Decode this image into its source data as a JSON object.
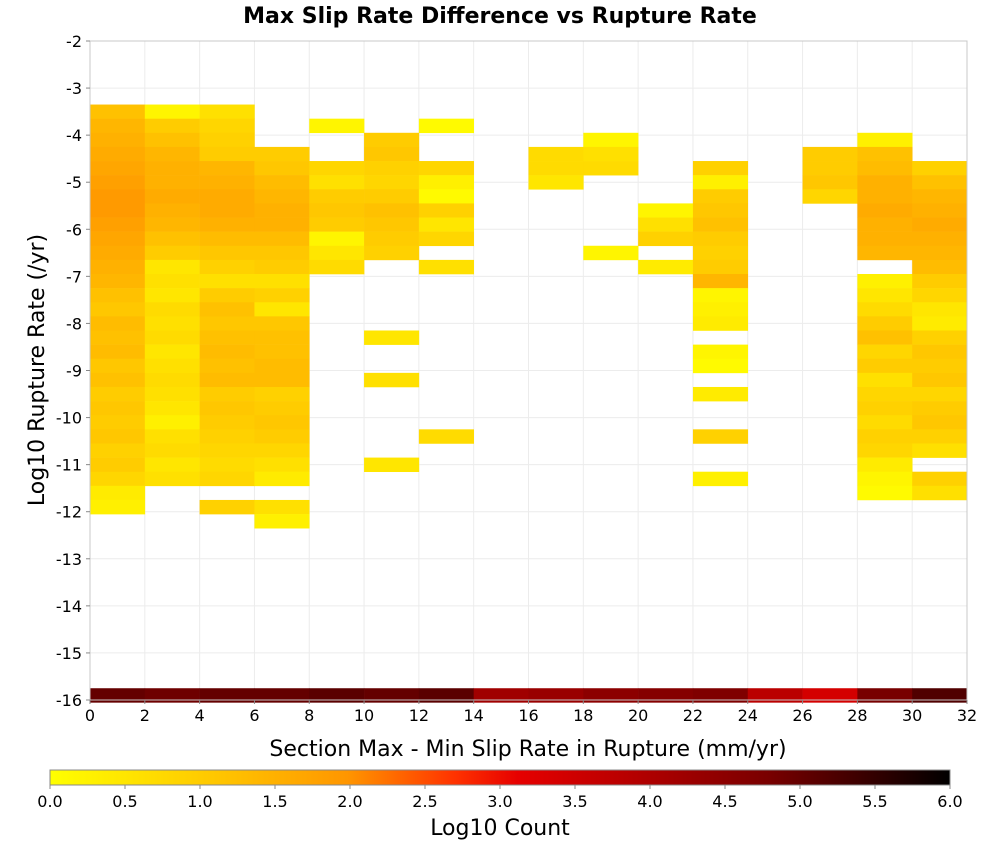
{
  "chart_data": {
    "type": "heatmap",
    "title": "Max Slip Rate Difference vs Rupture Rate",
    "xlabel": "Section Max - Min Slip Rate in Rupture (mm/yr)",
    "ylabel": "Log10 Rupture Rate (/yr)",
    "xlim": [
      0,
      32
    ],
    "ylim": [
      -16,
      -2
    ],
    "x_ticks": [
      "0",
      "2",
      "4",
      "6",
      "8",
      "10",
      "12",
      "14",
      "16",
      "18",
      "20",
      "22",
      "24",
      "26",
      "28",
      "30",
      "32"
    ],
    "y_ticks": [
      "-2",
      "-3",
      "-4",
      "-5",
      "-6",
      "-7",
      "-8",
      "-9",
      "-10",
      "-11",
      "-12",
      "-13",
      "-14",
      "-15",
      "-16"
    ],
    "bin_width_x": 2,
    "bin_height_y": 0.3,
    "colorbar": {
      "label": "Log10 Count",
      "range": [
        0,
        6
      ],
      "ticks": [
        "0.0",
        "0.5",
        "1.0",
        "1.5",
        "2.0",
        "2.5",
        "3.0",
        "3.5",
        "4.0",
        "4.5",
        "5.0",
        "5.5",
        "6.0"
      ]
    },
    "columns": [
      {
        "x": 0,
        "cells": [
          [
            -3.5,
            1.2
          ],
          [
            -3.8,
            1.4
          ],
          [
            -4.1,
            1.5
          ],
          [
            -4.4,
            1.6
          ],
          [
            -4.7,
            1.7
          ],
          [
            -5.0,
            1.8
          ],
          [
            -5.3,
            1.9
          ],
          [
            -5.6,
            1.9
          ],
          [
            -5.9,
            1.8
          ],
          [
            -6.2,
            1.7
          ],
          [
            -6.5,
            1.6
          ],
          [
            -6.8,
            1.5
          ],
          [
            -7.1,
            1.4
          ],
          [
            -7.4,
            1.2
          ],
          [
            -7.7,
            1.1
          ],
          [
            -8.0,
            1.3
          ],
          [
            -8.3,
            1.2
          ],
          [
            -8.6,
            1.3
          ],
          [
            -8.9,
            1.1
          ],
          [
            -9.2,
            1.2
          ],
          [
            -9.5,
            1.0
          ],
          [
            -9.8,
            1.1
          ],
          [
            -10.1,
            1.0
          ],
          [
            -10.4,
            1.1
          ],
          [
            -10.7,
            0.9
          ],
          [
            -11.0,
            1.0
          ],
          [
            -11.3,
            0.8
          ],
          [
            -11.6,
            0.4
          ],
          [
            -11.9,
            0.3
          ],
          [
            -15.9,
            5.0
          ]
        ]
      },
      {
        "x": 2,
        "cells": [
          [
            -3.5,
            0.2
          ],
          [
            -3.8,
            1.0
          ],
          [
            -4.1,
            1.2
          ],
          [
            -4.4,
            1.4
          ],
          [
            -4.7,
            1.5
          ],
          [
            -5.0,
            1.5
          ],
          [
            -5.3,
            1.6
          ],
          [
            -5.6,
            1.5
          ],
          [
            -5.9,
            1.4
          ],
          [
            -6.2,
            1.2
          ],
          [
            -6.5,
            1.0
          ],
          [
            -6.8,
            0.5
          ],
          [
            -7.1,
            0.6
          ],
          [
            -7.4,
            0.5
          ],
          [
            -7.7,
            0.7
          ],
          [
            -8.0,
            0.6
          ],
          [
            -8.3,
            0.7
          ],
          [
            -8.6,
            0.5
          ],
          [
            -8.9,
            0.6
          ],
          [
            -9.2,
            0.7
          ],
          [
            -9.5,
            0.6
          ],
          [
            -9.8,
            0.5
          ],
          [
            -10.1,
            0.3
          ],
          [
            -10.4,
            0.6
          ],
          [
            -10.7,
            0.7
          ],
          [
            -11.0,
            0.5
          ],
          [
            -11.3,
            0.6
          ],
          [
            -15.9,
            4.9
          ]
        ]
      },
      {
        "x": 4,
        "cells": [
          [
            -3.5,
            0.6
          ],
          [
            -3.8,
            0.8
          ],
          [
            -4.1,
            0.9
          ],
          [
            -4.4,
            1.0
          ],
          [
            -4.7,
            1.4
          ],
          [
            -5.0,
            1.5
          ],
          [
            -5.3,
            1.6
          ],
          [
            -5.6,
            1.6
          ],
          [
            -5.9,
            1.5
          ],
          [
            -6.2,
            1.3
          ],
          [
            -6.5,
            1.1
          ],
          [
            -6.8,
            0.9
          ],
          [
            -7.1,
            0.6
          ],
          [
            -7.4,
            1.0
          ],
          [
            -7.7,
            1.2
          ],
          [
            -8.0,
            1.1
          ],
          [
            -8.3,
            1.2
          ],
          [
            -8.6,
            1.3
          ],
          [
            -8.9,
            1.2
          ],
          [
            -9.2,
            1.3
          ],
          [
            -9.5,
            1.0
          ],
          [
            -9.8,
            1.1
          ],
          [
            -10.1,
            1.0
          ],
          [
            -10.4,
            0.9
          ],
          [
            -10.7,
            0.8
          ],
          [
            -11.0,
            0.7
          ],
          [
            -11.3,
            0.8
          ],
          [
            -11.9,
            0.9
          ],
          [
            -15.9,
            5.0
          ]
        ]
      },
      {
        "x": 6,
        "cells": [
          [
            -4.4,
            1.0
          ],
          [
            -4.7,
            1.1
          ],
          [
            -5.0,
            1.3
          ],
          [
            -5.3,
            1.4
          ],
          [
            -5.6,
            1.5
          ],
          [
            -5.9,
            1.5
          ],
          [
            -6.2,
            1.3
          ],
          [
            -6.5,
            1.1
          ],
          [
            -6.8,
            1.0
          ],
          [
            -7.1,
            0.6
          ],
          [
            -7.4,
            0.9
          ],
          [
            -7.7,
            0.5
          ],
          [
            -8.0,
            1.1
          ],
          [
            -8.3,
            1.2
          ],
          [
            -8.6,
            1.2
          ],
          [
            -8.9,
            1.3
          ],
          [
            -9.2,
            1.3
          ],
          [
            -9.5,
            0.9
          ],
          [
            -9.8,
            1.0
          ],
          [
            -10.1,
            1.1
          ],
          [
            -10.4,
            1.0
          ],
          [
            -10.7,
            0.8
          ],
          [
            -11.0,
            0.6
          ],
          [
            -11.3,
            0.4
          ],
          [
            -11.9,
            0.6
          ],
          [
            -12.2,
            0.3
          ],
          [
            -15.9,
            5.0
          ]
        ]
      },
      {
        "x": 8,
        "cells": [
          [
            -3.8,
            0.2
          ],
          [
            -4.7,
            0.8
          ],
          [
            -5.0,
            0.6
          ],
          [
            -5.3,
            1.0
          ],
          [
            -5.6,
            1.1
          ],
          [
            -5.9,
            1.0
          ],
          [
            -6.2,
            0.2
          ],
          [
            -6.5,
            0.5
          ],
          [
            -6.8,
            0.7
          ],
          [
            -15.9,
            5.1
          ]
        ]
      },
      {
        "x": 10,
        "cells": [
          [
            -4.1,
            1.0
          ],
          [
            -4.4,
            1.1
          ],
          [
            -4.7,
            0.9
          ],
          [
            -5.0,
            0.8
          ],
          [
            -5.3,
            1.0
          ],
          [
            -5.6,
            1.2
          ],
          [
            -5.9,
            1.1
          ],
          [
            -6.2,
            1.0
          ],
          [
            -6.5,
            0.9
          ],
          [
            -8.3,
            0.5
          ],
          [
            -9.2,
            0.6
          ],
          [
            -11.0,
            0.5
          ],
          [
            -15.9,
            5.0
          ]
        ]
      },
      {
        "x": 12,
        "cells": [
          [
            -3.8,
            0.1
          ],
          [
            -4.7,
            0.8
          ],
          [
            -5.0,
            0.3
          ],
          [
            -5.3,
            0.1
          ],
          [
            -5.6,
            0.9
          ],
          [
            -5.9,
            0.5
          ],
          [
            -6.2,
            0.8
          ],
          [
            -6.8,
            0.6
          ],
          [
            -10.4,
            0.7
          ],
          [
            -15.9,
            5.1
          ]
        ]
      },
      {
        "x": 14,
        "cells": [
          [
            -15.9,
            4.2
          ]
        ]
      },
      {
        "x": 16,
        "cells": [
          [
            -4.4,
            0.7
          ],
          [
            -4.7,
            0.7
          ],
          [
            -5.0,
            0.5
          ],
          [
            -15.9,
            4.3
          ]
        ]
      },
      {
        "x": 18,
        "cells": [
          [
            -4.1,
            0.2
          ],
          [
            -4.4,
            0.6
          ],
          [
            -4.7,
            0.7
          ],
          [
            -6.5,
            0.2
          ],
          [
            -15.9,
            4.5
          ]
        ]
      },
      {
        "x": 20,
        "cells": [
          [
            -5.6,
            0.2
          ],
          [
            -5.9,
            0.6
          ],
          [
            -6.2,
            0.9
          ],
          [
            -6.8,
            0.4
          ],
          [
            -15.9,
            4.6
          ]
        ]
      },
      {
        "x": 22,
        "cells": [
          [
            -4.7,
            0.9
          ],
          [
            -5.0,
            0.3
          ],
          [
            -5.3,
            1.0
          ],
          [
            -5.6,
            1.1
          ],
          [
            -5.9,
            1.2
          ],
          [
            -6.2,
            1.0
          ],
          [
            -6.5,
            0.9
          ],
          [
            -6.8,
            1.0
          ],
          [
            -7.1,
            1.4
          ],
          [
            -7.4,
            0.2
          ],
          [
            -7.7,
            0.3
          ],
          [
            -8.0,
            0.4
          ],
          [
            -8.6,
            0.2
          ],
          [
            -8.9,
            0.1
          ],
          [
            -9.5,
            0.4
          ],
          [
            -10.4,
            0.9
          ],
          [
            -11.3,
            0.3
          ],
          [
            -15.9,
            4.7
          ]
        ]
      },
      {
        "x": 24,
        "cells": [
          [
            -15.9,
            3.8
          ]
        ]
      },
      {
        "x": 26,
        "cells": [
          [
            -4.4,
            1.0
          ],
          [
            -4.7,
            1.0
          ],
          [
            -5.0,
            1.1
          ],
          [
            -5.3,
            0.8
          ],
          [
            -15.9,
            3.4
          ]
        ]
      },
      {
        "x": 28,
        "cells": [
          [
            -4.1,
            0.3
          ],
          [
            -4.4,
            1.2
          ],
          [
            -4.7,
            1.3
          ],
          [
            -5.0,
            1.5
          ],
          [
            -5.3,
            1.5
          ],
          [
            -5.6,
            1.6
          ],
          [
            -5.9,
            1.5
          ],
          [
            -6.2,
            1.5
          ],
          [
            -6.5,
            1.4
          ],
          [
            -7.1,
            0.3
          ],
          [
            -7.4,
            0.5
          ],
          [
            -7.7,
            0.7
          ],
          [
            -8.0,
            1.0
          ],
          [
            -8.3,
            1.2
          ],
          [
            -8.6,
            0.8
          ],
          [
            -8.9,
            1.0
          ],
          [
            -9.2,
            0.6
          ],
          [
            -9.5,
            0.8
          ],
          [
            -9.8,
            0.9
          ],
          [
            -10.1,
            0.7
          ],
          [
            -10.4,
            0.9
          ],
          [
            -10.7,
            0.8
          ],
          [
            -11.0,
            0.4
          ],
          [
            -11.3,
            0.2
          ],
          [
            -11.6,
            0.1
          ],
          [
            -15.9,
            4.8
          ]
        ]
      },
      {
        "x": 30,
        "cells": [
          [
            -4.7,
            0.9
          ],
          [
            -5.0,
            1.2
          ],
          [
            -5.3,
            1.4
          ],
          [
            -5.6,
            1.5
          ],
          [
            -5.9,
            1.6
          ],
          [
            -6.2,
            1.5
          ],
          [
            -6.5,
            1.4
          ],
          [
            -6.8,
            1.3
          ],
          [
            -7.1,
            1.0
          ],
          [
            -7.4,
            0.8
          ],
          [
            -7.7,
            0.5
          ],
          [
            -8.0,
            0.4
          ],
          [
            -8.3,
            0.9
          ],
          [
            -8.6,
            1.1
          ],
          [
            -8.9,
            1.0
          ],
          [
            -9.2,
            1.1
          ],
          [
            -9.5,
            0.8
          ],
          [
            -9.8,
            1.0
          ],
          [
            -10.1,
            1.1
          ],
          [
            -10.4,
            0.9
          ],
          [
            -10.7,
            0.6
          ],
          [
            -11.3,
            0.9
          ],
          [
            -11.6,
            0.6
          ],
          [
            -15.9,
            5.2
          ]
        ]
      }
    ]
  }
}
